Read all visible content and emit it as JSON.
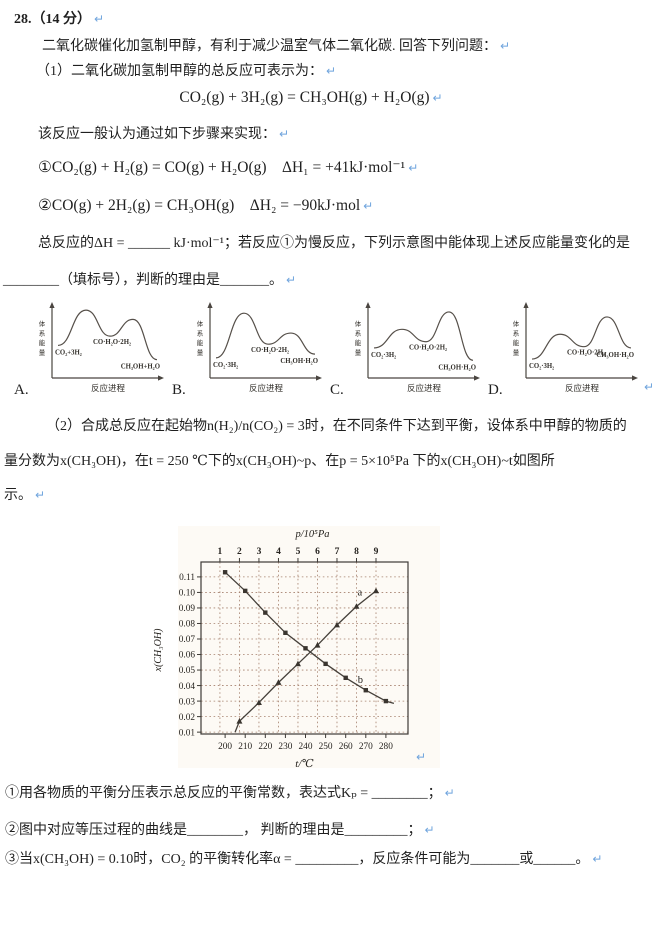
{
  "marks": {
    "return_mark": "↵"
  },
  "colors": {
    "text": "#1f1f1f",
    "return_mark": "#6fa4dd",
    "chart_bg": "#fdfaf5",
    "chart_grid": "#a5806d",
    "chart_axis": "#3d3a36",
    "chart_line": "#45403a",
    "chart_marker": "#3a352f",
    "diagram_curve": "#56504a",
    "diagram_text": "#33302b"
  },
  "text": {
    "title": "28.（14 分）",
    "intro": "二氧化碳催化加氢制甲醇，有利于减少温室气体二氧化碳. 回答下列问题：",
    "part1": "（1）二氧化碳加氢制甲醇的总反应可表示为：",
    "eq_overall": "CO₂(g) + 3H₂(g) = CH₃OH(g) + H₂O(g)",
    "steps_intro": "该反应一般认为通过如下步骤来实现：",
    "eq_step1": "①CO₂(g) + H₂(g) = CO(g) + H₂O(g)    ΔH₁ = +41kJ·mol⁻¹",
    "eq_step2": "②CO(g) + 2H₂(g) = CH₃OH(g)    ΔH₂ = −90kJ·mol",
    "q1_line1": "总反应的ΔH = ______ kJ·mol⁻¹；若反应①为慢反应，下列示意图中能体现上述反应能量变化的是",
    "q1_line2": "________（填标号），判断的理由是_______。",
    "part2_line1": "（2）合成总反应在起始物n(H₂)/n(CO₂) = 3时，在不同条件下达到平衡，设体系中甲醇的物质的",
    "part2_line2": "量分数为x(CH₃OH)，在t = 250 ℃下的x(CH₃OH)~p、在p = 5×10⁵Pa 下的x(CH₃OH)~t如图所",
    "part2_line3": "示。",
    "sub1": "①用各物质的平衡分压表示总反应的平衡常数，表达式Kₚ = ________；",
    "sub2": "②图中对应等压过程的曲线是________， 判断的理由是_________；",
    "sub3": "③当x(CH₃OH) = 0.10时，CO₂ 的平衡转化率α = _________，反应条件可能为_______或______。"
  },
  "energy_diagrams": [
    {
      "letter": "A.",
      "y_axis": "体系能量",
      "x_axis": "反应进程",
      "start_label": "CO₂+3H₂",
      "mid_label": "CO·H₂O·2H₂",
      "end_label": "CH₃OH+H₂O",
      "levels": {
        "start": 0.62,
        "peak1": 0.05,
        "valley": 0.47,
        "peak2": 0.2,
        "end": 0.85
      }
    },
    {
      "letter": "B.",
      "y_axis": "体系能量",
      "x_axis": "反应进程",
      "start_label": "CO₂·3H₂",
      "mid_label": "CO·H₂O·2H₂",
      "end_label": "CH₃OH·H₂O",
      "levels": {
        "start": 0.82,
        "peak1": 0.1,
        "valley": 0.6,
        "peak2": 0.42,
        "end": 0.76
      }
    },
    {
      "letter": "C.",
      "y_axis": "体系能量",
      "x_axis": "反应进程",
      "start_label": "CO₂·3H₂",
      "mid_label": "CO·H₂O·2H₂",
      "end_label": "CH₃OH·H₂O",
      "levels": {
        "start": 0.66,
        "peak1": 0.36,
        "valley": 0.56,
        "peak2": 0.08,
        "end": 0.86
      }
    },
    {
      "letter": "D.",
      "y_axis": "体系能量",
      "x_axis": "反应进程",
      "start_label": "CO₂·3H₂",
      "mid_label": "CO·H₂O·2H₂",
      "end_label": "CH₃OH·H₂O",
      "levels": {
        "start": 0.84,
        "peak1": 0.44,
        "valley": 0.64,
        "peak2": 0.16,
        "end": 0.66
      }
    }
  ],
  "chart_data": {
    "type": "line",
    "title": "",
    "grid": "dotted",
    "y_axis": {
      "label": "x(CH₃OH)",
      "ticks": [
        0.01,
        0.02,
        0.03,
        0.04,
        0.05,
        0.06,
        0.07,
        0.08,
        0.09,
        0.1,
        0.11
      ],
      "range": [
        0.0088,
        0.1196
      ]
    },
    "top_axis": {
      "label": "p/10⁵Pa",
      "ticks": [
        1,
        2,
        3,
        4,
        5,
        6,
        7,
        8,
        9
      ],
      "range": [
        0.03,
        10.64
      ]
    },
    "bottom_axis": {
      "label": "t/℃",
      "ticks": [
        200,
        210,
        220,
        230,
        240,
        250,
        260,
        270,
        280
      ],
      "range": [
        188,
        291
      ]
    },
    "series": [
      {
        "name": "a",
        "axis": "top",
        "marker": "triangle",
        "lead_in": [
          1.78,
          0.01
        ],
        "points": [
          [
            2,
            0.017
          ],
          [
            3,
            0.029
          ],
          [
            4,
            0.042
          ],
          [
            5,
            0.054
          ],
          [
            6,
            0.066
          ],
          [
            7,
            0.079
          ],
          [
            8,
            0.091
          ],
          [
            9,
            0.101
          ]
        ],
        "label": "a",
        "label_pos": [
          8.05,
          0.098
        ]
      },
      {
        "name": "b",
        "axis": "bottom",
        "marker": "square",
        "tail_out": [
          284,
          0.0285
        ],
        "points": [
          [
            200,
            0.113
          ],
          [
            210,
            0.101
          ],
          [
            220,
            0.087
          ],
          [
            230,
            0.074
          ],
          [
            240,
            0.064
          ],
          [
            250,
            0.054
          ],
          [
            260,
            0.045
          ],
          [
            270,
            0.037
          ],
          [
            280,
            0.03
          ]
        ],
        "label": "b",
        "label_pos": [
          266,
          0.0415
        ]
      }
    ]
  }
}
